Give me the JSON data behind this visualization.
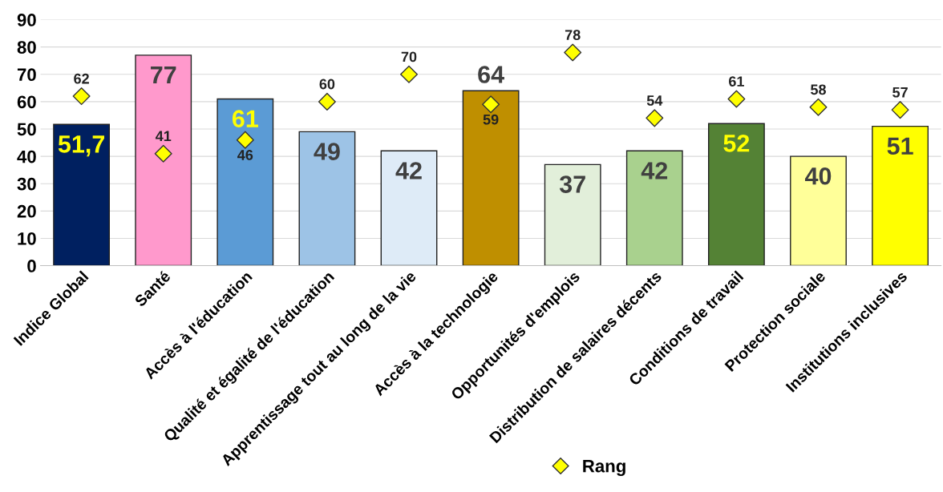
{
  "chart_data": {
    "type": "bar",
    "categories": [
      "Indice Global",
      "Santé",
      "Accès à l'éducation",
      "Qualité et égalité de l'éducation",
      "Apprentissage tout au long de la vie",
      "Accès à la technologie",
      "Opportunités d'emplois",
      "Distribution de salaires décents",
      "Conditions de travail",
      "Protection sociale",
      "Institutions inclusives"
    ],
    "series": [
      {
        "colors": [
          "#002060",
          "#ff99cc",
          "#5b9bd5",
          "#9dc3e6",
          "#deebf7",
          "#bf8f00",
          "#e2efda",
          "#a9d18e",
          "#548235",
          "#ffff99",
          "#ffff00"
        ],
        "values": [
          51.7,
          77,
          61,
          49,
          42,
          64,
          37,
          42,
          52,
          40,
          51
        ],
        "value_labels": [
          "51,7",
          "77",
          "61",
          "49",
          "42",
          "64",
          "37",
          "42",
          "52",
          "40",
          "51"
        ]
      },
      {
        "type": "scatter",
        "name": "Rang",
        "color": "#ffff00",
        "marker": "diamond",
        "values": [
          62,
          41,
          46,
          60,
          70,
          59,
          78,
          54,
          61,
          58,
          57
        ]
      }
    ],
    "data_labels": true,
    "ylim": [
      0,
      90
    ],
    "yticks": [
      0,
      10,
      20,
      30,
      40,
      50,
      60,
      70,
      80,
      90
    ],
    "grid": "y",
    "legend": "bottom"
  }
}
